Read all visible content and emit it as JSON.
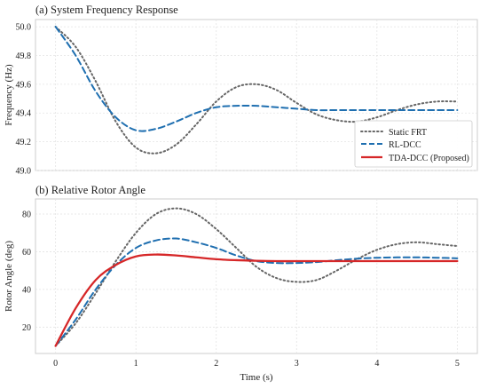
{
  "chart_data": [
    {
      "type": "line",
      "title": "(a) System Frequency Response",
      "xlabel": "",
      "ylabel": "Frequency (Hz)",
      "xlim": [
        -0.25,
        5.25
      ],
      "ylim": [
        49.0,
        50.05
      ],
      "xticks": [
        0,
        1,
        2,
        3,
        4,
        5
      ],
      "yticks": [
        49.0,
        49.2,
        49.4,
        49.6,
        49.8,
        50.0
      ],
      "xtick_labels_shown": false,
      "grid": true,
      "legend": "bottom-right",
      "series": [
        {
          "name": "Static FRT",
          "color": "#666666",
          "style": "dotted",
          "x": [
            0,
            0.25,
            0.5,
            0.75,
            1.0,
            1.25,
            1.5,
            1.75,
            2.0,
            2.25,
            2.5,
            2.75,
            3.0,
            3.25,
            3.5,
            3.75,
            4.0,
            4.25,
            4.5,
            4.75,
            5.0
          ],
          "y": [
            50.0,
            49.86,
            49.62,
            49.34,
            49.16,
            49.12,
            49.18,
            49.32,
            49.48,
            49.58,
            49.6,
            49.56,
            49.47,
            49.39,
            49.35,
            49.34,
            49.37,
            49.42,
            49.46,
            49.48,
            49.48
          ]
        },
        {
          "name": "RL-DCC",
          "color": "#1f6fb0",
          "style": "dashed",
          "x": [
            0,
            0.25,
            0.5,
            0.75,
            1.0,
            1.25,
            1.5,
            1.75,
            2.0,
            2.25,
            2.5,
            2.75,
            3.0,
            3.25,
            3.5,
            3.75,
            4.0,
            4.25,
            4.5,
            4.75,
            5.0
          ],
          "y": [
            50.0,
            49.8,
            49.55,
            49.37,
            49.28,
            49.29,
            49.34,
            49.4,
            49.44,
            49.45,
            49.45,
            49.44,
            49.43,
            49.42,
            49.42,
            49.42,
            49.42,
            49.42,
            49.42,
            49.42,
            49.42
          ]
        }
      ]
    },
    {
      "type": "line",
      "title": "(b) Relative Rotor Angle",
      "xlabel": "Time (s)",
      "ylabel": "Rotor Angle (deg)",
      "xlim": [
        -0.25,
        5.25
      ],
      "ylim": [
        6,
        88
      ],
      "xticks": [
        0,
        1,
        2,
        3,
        4,
        5
      ],
      "yticks": [
        20,
        40,
        60,
        80
      ],
      "grid": true,
      "series": [
        {
          "name": "Static FRT",
          "color": "#666666",
          "style": "dotted",
          "x": [
            0,
            0.25,
            0.5,
            0.75,
            1.0,
            1.25,
            1.5,
            1.75,
            2.0,
            2.25,
            2.5,
            2.75,
            3.0,
            3.25,
            3.5,
            3.75,
            4.0,
            4.25,
            4.5,
            4.75,
            5.0
          ],
          "y": [
            10,
            22,
            38,
            55,
            70,
            80,
            83,
            80,
            72,
            62,
            52,
            46,
            44,
            45,
            50,
            56,
            61,
            64,
            65,
            64,
            63
          ]
        },
        {
          "name": "RL-DCC",
          "color": "#1f6fb0",
          "style": "dashed",
          "x": [
            0,
            0.25,
            0.5,
            0.75,
            1.0,
            1.25,
            1.5,
            1.75,
            2.0,
            2.25,
            2.5,
            2.75,
            3.0,
            3.25,
            3.5,
            3.75,
            4.0,
            4.25,
            4.5,
            4.75,
            5.0
          ],
          "y": [
            10,
            24,
            40,
            53,
            62,
            66,
            67,
            65,
            62,
            58,
            55,
            54,
            54,
            54.5,
            55.5,
            56.3,
            56.8,
            57,
            57,
            56.8,
            56.5
          ]
        },
        {
          "name": "TDA-DCC (Proposed)",
          "color": "#d62728",
          "style": "solid",
          "x": [
            0,
            0.25,
            0.5,
            0.75,
            1.0,
            1.25,
            1.5,
            1.75,
            2.0,
            2.25,
            2.5,
            2.75,
            3.0,
            3.25,
            3.5,
            3.75,
            4.0,
            4.25,
            4.5,
            4.75,
            5.0
          ],
          "y": [
            10,
            30,
            45,
            53,
            57.5,
            58.5,
            58,
            57,
            56,
            55.5,
            55.2,
            55,
            55,
            55,
            55,
            55,
            55,
            55,
            55,
            55,
            55
          ]
        }
      ]
    }
  ],
  "legend": {
    "items": [
      {
        "label": "Static FRT",
        "color": "#666666",
        "style": "dotted"
      },
      {
        "label": "RL-DCC",
        "color": "#1f6fb0",
        "style": "dashed"
      },
      {
        "label": "TDA-DCC (Proposed)",
        "color": "#d62728",
        "style": "solid"
      }
    ]
  }
}
